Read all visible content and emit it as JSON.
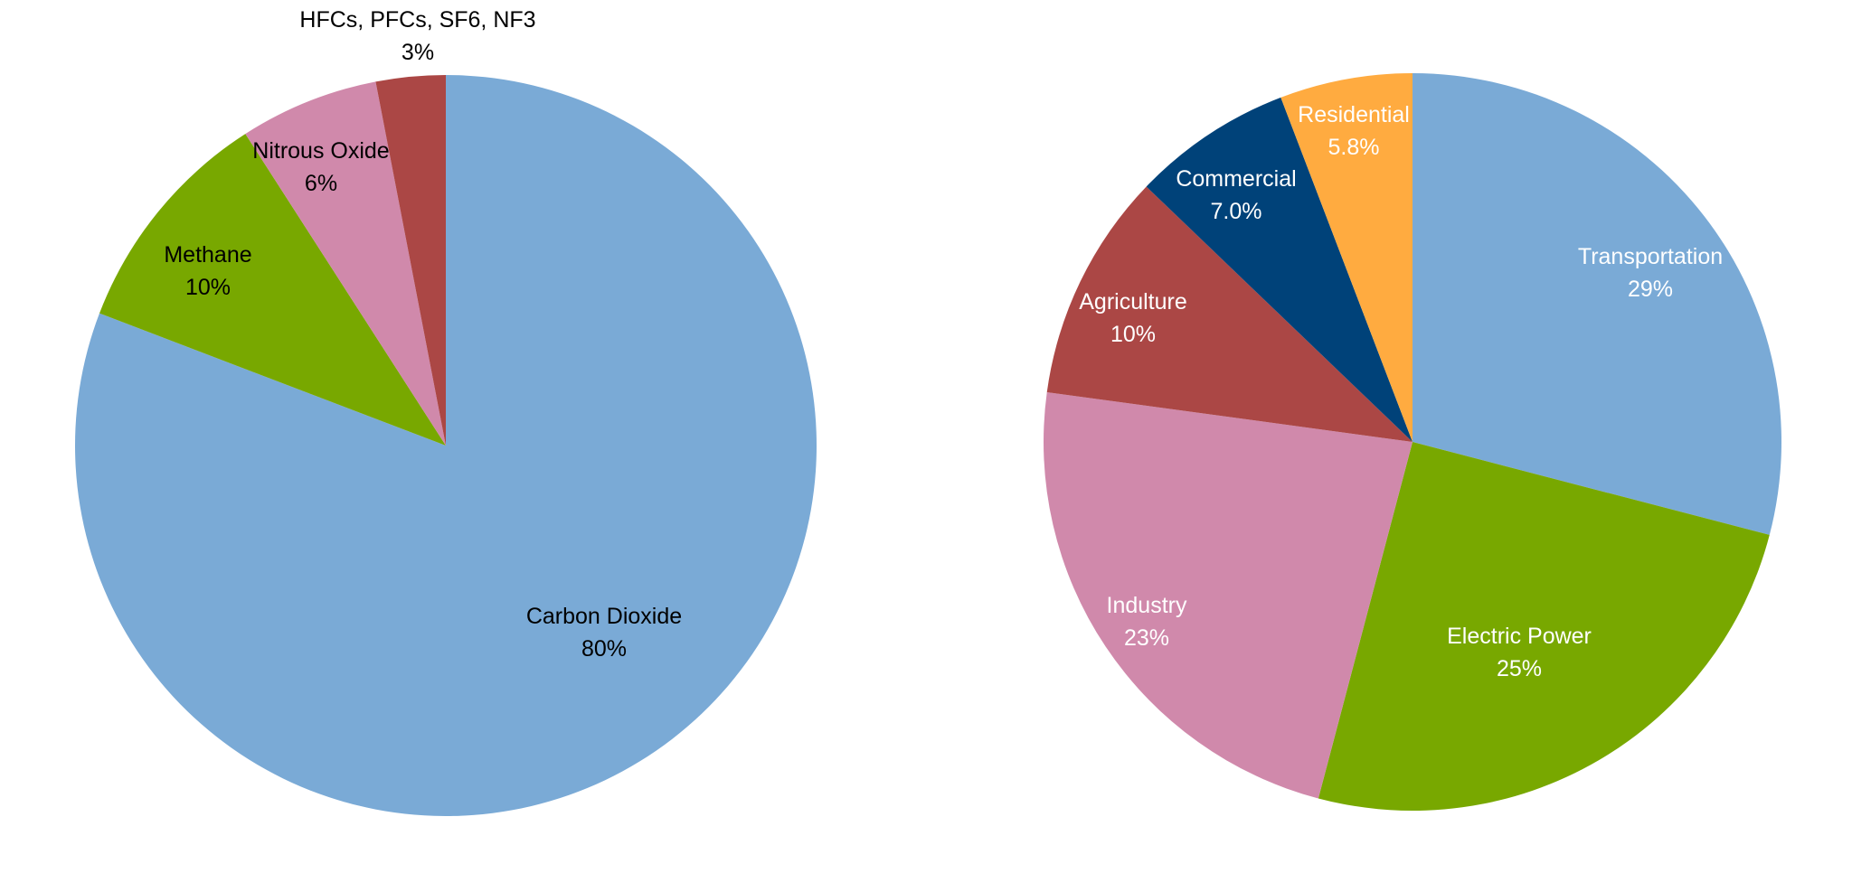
{
  "chart_data": [
    {
      "type": "pie",
      "start_angle_deg": 0,
      "direction": "clockwise",
      "slices": [
        {
          "name": "Carbon Dioxide",
          "value": 80,
          "label": "80%",
          "color": "#7aaad6",
          "label_color": "#000000"
        },
        {
          "name": "Methane",
          "value": 10,
          "label": "10%",
          "color": "#78a800",
          "label_color": "#000000"
        },
        {
          "name": "Nitrous Oxide",
          "value": 6,
          "label": "6%",
          "color": "#d089ab",
          "label_color": "#000000"
        },
        {
          "name": "HFCs, PFCs, SF6, NF3",
          "value": 3,
          "label": "3%",
          "color": "#ab4745",
          "label_color": "#000000"
        }
      ]
    },
    {
      "type": "pie",
      "start_angle_deg": 0,
      "direction": "clockwise",
      "slices": [
        {
          "name": "Transportation",
          "value": 29,
          "label": "29%",
          "color": "#7aaad6",
          "label_color": "#ffffff"
        },
        {
          "name": "Electric Power",
          "value": 25,
          "label": "25%",
          "color": "#78a800",
          "label_color": "#ffffff"
        },
        {
          "name": "Industry",
          "value": 23,
          "label": "23%",
          "color": "#d089ab",
          "label_color": "#ffffff"
        },
        {
          "name": "Agriculture",
          "value": 10,
          "label": "10%",
          "color": "#ab4745",
          "label_color": "#ffffff"
        },
        {
          "name": "Commercial",
          "value": 7.0,
          "label": "7.0%",
          "color": "#004279",
          "label_color": "#ffffff"
        },
        {
          "name": "Residential",
          "value": 5.8,
          "label": "5.8%",
          "color": "#ffab40",
          "label_color": "#ffffff"
        }
      ]
    }
  ]
}
